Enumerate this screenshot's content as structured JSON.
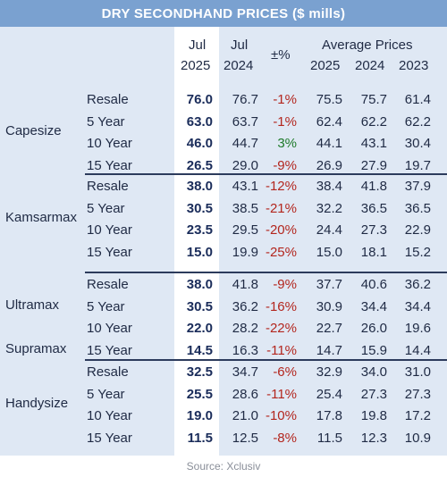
{
  "title": "DRY SECONDHAND PRICES ($ mills)",
  "header": {
    "jul_2025": [
      "Jul",
      "2025"
    ],
    "jul_2024": [
      "Jul",
      "2024"
    ],
    "pct": "±%",
    "avg_title": "Average Prices",
    "avg_years": [
      "2025",
      "2024",
      "2023"
    ]
  },
  "groups": [
    {
      "label": "Capesize",
      "rows": [
        {
          "age": "Resale",
          "jul25": "76.0",
          "jul24": "76.7",
          "pct": "-1%",
          "a25": "75.5",
          "a24": "75.7",
          "a23": "61.4"
        },
        {
          "age": "5 Year",
          "jul25": "63.0",
          "jul24": "63.7",
          "pct": "-1%",
          "a25": "62.4",
          "a24": "62.2",
          "a23": "62.2"
        },
        {
          "age": "10 Year",
          "jul25": "46.0",
          "jul24": "44.7",
          "pct": "3%",
          "a25": "44.1",
          "a24": "43.1",
          "a23": "30.4"
        },
        {
          "age": "15 Year",
          "jul25": "26.5",
          "jul24": "29.0",
          "pct": "-9%",
          "a25": "26.9",
          "a24": "27.9",
          "a23": "19.7"
        }
      ]
    },
    {
      "label": "Kamsarmax",
      "rows": [
        {
          "age": "Resale",
          "jul25": "38.0",
          "jul24": "43.1",
          "pct": "-12%",
          "a25": "38.4",
          "a24": "41.8",
          "a23": "37.9"
        },
        {
          "age": "5 Year",
          "jul25": "30.5",
          "jul24": "38.5",
          "pct": "-21%",
          "a25": "32.2",
          "a24": "36.5",
          "a23": "36.5"
        },
        {
          "age": "10 Year",
          "jul25": "23.5",
          "jul24": "29.5",
          "pct": "-20%",
          "a25": "24.4",
          "a24": "27.3",
          "a23": "22.9"
        },
        {
          "age": "15 Year",
          "jul25": "15.0",
          "jul24": "19.9",
          "pct": "-25%",
          "a25": "15.0",
          "a24": "18.1",
          "a23": "15.2"
        }
      ]
    },
    {
      "label": "Ultramax",
      "label2": "Supramax",
      "rows": [
        {
          "age": "Resale",
          "jul25": "38.0",
          "jul24": "41.8",
          "pct": "-9%",
          "a25": "37.7",
          "a24": "40.6",
          "a23": "36.2"
        },
        {
          "age": "5 Year",
          "jul25": "30.5",
          "jul24": "36.2",
          "pct": "-16%",
          "a25": "30.9",
          "a24": "34.4",
          "a23": "34.4"
        },
        {
          "age": "10 Year",
          "jul25": "22.0",
          "jul24": "28.2",
          "pct": "-22%",
          "a25": "22.7",
          "a24": "26.0",
          "a23": "19.6"
        },
        {
          "age": "15 Year",
          "jul25": "14.5",
          "jul24": "16.3",
          "pct": "-11%",
          "a25": "14.7",
          "a24": "15.9",
          "a23": "14.4"
        }
      ]
    },
    {
      "label": "Handysize",
      "rows": [
        {
          "age": "Resale",
          "jul25": "32.5",
          "jul24": "34.7",
          "pct": "-6%",
          "a25": "32.9",
          "a24": "34.0",
          "a23": "31.0"
        },
        {
          "age": "5 Year",
          "jul25": "25.5",
          "jul24": "28.6",
          "pct": "-11%",
          "a25": "25.4",
          "a24": "27.3",
          "a23": "27.3"
        },
        {
          "age": "10 Year",
          "jul25": "19.0",
          "jul24": "21.0",
          "pct": "-10%",
          "a25": "17.8",
          "a24": "19.8",
          "a23": "17.2"
        },
        {
          "age": "15 Year",
          "jul25": "11.5",
          "jul24": "12.5",
          "pct": "-8%",
          "a25": "11.5",
          "a24": "12.3",
          "a23": "10.9"
        }
      ]
    }
  ],
  "source": "Source: Xclusiv",
  "colors": {
    "title_bg": "#7aa1d0",
    "negative": "#b3261e",
    "positive": "#1e7a2a"
  }
}
